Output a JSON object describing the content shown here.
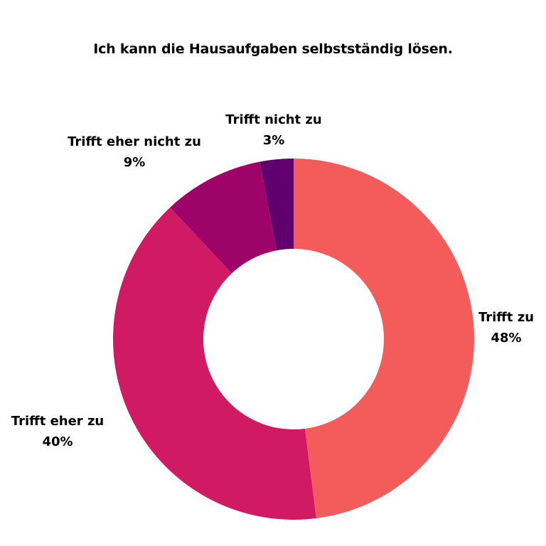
{
  "chart_data": {
    "type": "pie",
    "title": "Ich kann die Hausaufgaben selbstständig lösen.",
    "donut": true,
    "slices": [
      {
        "label": "Trifft zu",
        "value": 48,
        "value_label": "48%",
        "color": "#F45B5B"
      },
      {
        "label": "Trifft eher zu",
        "value": 40,
        "value_label": "40%",
        "color": "#D11A64"
      },
      {
        "label": "Trifft eher nicht zu",
        "value": 9,
        "value_label": "9%",
        "color": "#9E0369"
      },
      {
        "label": "Trifft nicht zu",
        "value": 3,
        "value_label": "3%",
        "color": "#5F006E"
      }
    ],
    "legend": "none"
  }
}
